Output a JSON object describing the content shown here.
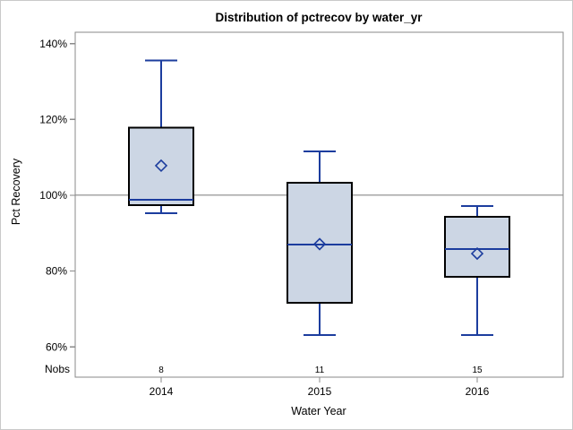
{
  "window": {
    "background": "#ffffff",
    "border_color": "#c9c9c9"
  },
  "chart_data": {
    "type": "boxplot",
    "title": "Distribution of pctrecov by water_yr",
    "xlabel": "Water Year",
    "ylabel": "Pct Recovery",
    "categories": [
      "2014",
      "2015",
      "2016"
    ],
    "nobs_row_label": "Nobs",
    "series": [
      {
        "category": "2014",
        "nobs": 8,
        "whisker_low": 95.3,
        "q1": 97.4,
        "median": 98.8,
        "q3": 117.8,
        "whisker_high": 135.6,
        "mean": 107.8
      },
      {
        "category": "2015",
        "nobs": 11,
        "whisker_low": 63.1,
        "q1": 71.6,
        "median": 87.0,
        "q3": 103.3,
        "whisker_high": 111.6,
        "mean": 87.1
      },
      {
        "category": "2016",
        "nobs": 15,
        "whisker_low": 63.1,
        "q1": 78.5,
        "median": 85.8,
        "q3": 94.3,
        "whisker_high": 97.2,
        "mean": 84.6
      }
    ],
    "yticks": [
      140,
      120,
      100,
      80,
      60
    ],
    "ytick_suffix": "%",
    "ylim": [
      52,
      143
    ],
    "reference_line": 100,
    "grid": false,
    "legend": "none",
    "colors": {
      "box_fill": "#ccd6e4",
      "box_border": "#000000",
      "whisker": "#1c3d9e",
      "median": "#1c3d9e",
      "mean_marker": "#1c3d9e",
      "reference_line": "#a6a6a6",
      "axis_frame": "#8a8a8a",
      "text": "#000000"
    }
  }
}
